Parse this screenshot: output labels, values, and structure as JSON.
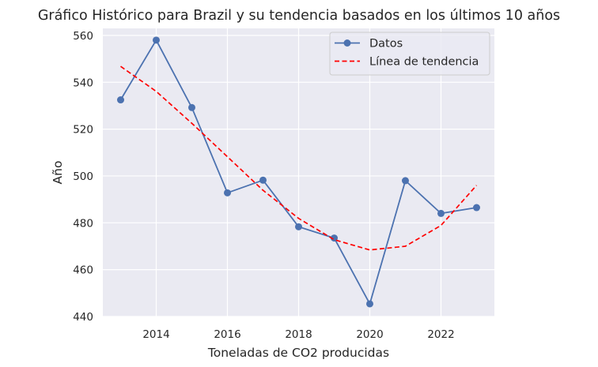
{
  "chart_data": {
    "type": "line",
    "title": "Gráfico Histórico para Brazil y su tendencia basados en los últimos 10 años",
    "xlabel": "Toneladas de CO2 producidas",
    "ylabel": "Año",
    "x": [
      2013,
      2014,
      2015,
      2016,
      2017,
      2018,
      2019,
      2020,
      2021,
      2022,
      2023
    ],
    "xlim": [
      2012.5,
      2023.5
    ],
    "ylim": [
      440,
      563
    ],
    "xticks": [
      2014,
      2016,
      2018,
      2020,
      2022
    ],
    "yticks": [
      440,
      460,
      480,
      500,
      520,
      540,
      560
    ],
    "grid": true,
    "legend_position": "upper right",
    "series": [
      {
        "name": "Datos",
        "style": "solid-with-circle-markers",
        "color": "#4c72b0",
        "values": [
          532.5,
          558.0,
          529.2,
          492.8,
          498.2,
          478.3,
          473.5,
          445.4,
          498.0,
          484.0,
          486.5
        ]
      },
      {
        "name": "Línea de tendencia",
        "style": "dashed",
        "color": "#ff0000",
        "values": [
          546.8,
          536.1,
          522.5,
          508.2,
          493.9,
          481.9,
          472.8,
          468.4,
          470.0,
          478.9,
          496.0
        ]
      }
    ],
    "colors": {
      "plot_background": "#eaeaf2",
      "grid": "#ffffff"
    }
  }
}
